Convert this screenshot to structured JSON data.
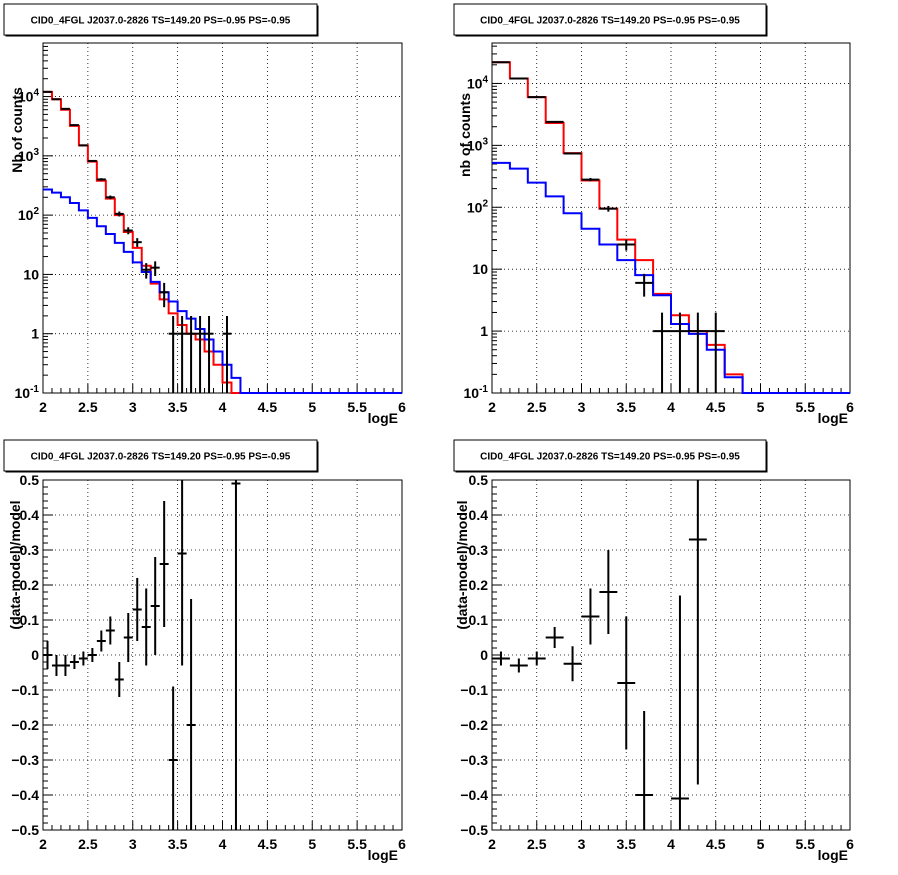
{
  "chart_data": [
    {
      "type": "line",
      "title": "CID0_4FGL J2037.0-2826 TS=149.20 PS=-0.95 PS=-0.95",
      "xlabel": "logE",
      "ylabel": "Nb of counts",
      "xlim": [
        2,
        6
      ],
      "ylim": [
        0.1,
        80000
      ],
      "yscale": "log",
      "grid": true,
      "x_ticks": [
        "2",
        "2.5",
        "3",
        "3.5",
        "4",
        "4.5",
        "5",
        "5.5",
        "6"
      ],
      "y_ticks": [
        {
          "v": 0.1,
          "t": "10",
          "sup": "-1"
        },
        {
          "v": 1,
          "t": "1",
          "sup": ""
        },
        {
          "v": 10,
          "t": "10",
          "sup": ""
        },
        {
          "v": 100,
          "t": "10",
          "sup": "2"
        },
        {
          "v": 1000,
          "t": "10",
          "sup": "3"
        },
        {
          "v": 10000,
          "t": "10",
          "sup": "4"
        }
      ],
      "bin_edges_start": 2.0,
      "bin_width": 0.1,
      "series": [
        {
          "color": "#ff0000",
          "values": [
            12000,
            9000,
            6000,
            3200,
            1500,
            800,
            380,
            190,
            100,
            52,
            28,
            14,
            7,
            3.8,
            2.2,
            1.4,
            1.0,
            0.8,
            0.5,
            0.3,
            0.15,
            0.1,
            0.1,
            0.1,
            0.1,
            0.1,
            0.1,
            0.1,
            0.1,
            0.1,
            0.1,
            0.1,
            0.1,
            0.1,
            0.1,
            0.1,
            0.1,
            0.1,
            0.1,
            0.1
          ]
        },
        {
          "color": "#0000ff",
          "values": [
            270,
            240,
            200,
            160,
            120,
            90,
            65,
            48,
            34,
            24,
            16,
            11,
            7.5,
            5,
            3.5,
            2.4,
            1.8,
            1.2,
            0.8,
            0.5,
            0.3,
            0.18,
            0.1,
            0.1,
            0.1,
            0.1,
            0.1,
            0.1,
            0.1,
            0.1,
            0.1,
            0.1,
            0.1,
            0.1,
            0.1,
            0.1,
            0.1,
            0.1,
            0.1,
            0.1
          ]
        }
      ],
      "points": [
        {
          "x": 2.05,
          "y": 12000,
          "yerr": 110
        },
        {
          "x": 2.15,
          "y": 9000,
          "yerr": 95
        },
        {
          "x": 2.25,
          "y": 6200,
          "yerr": 79
        },
        {
          "x": 2.35,
          "y": 3300,
          "yerr": 57
        },
        {
          "x": 2.45,
          "y": 1500,
          "yerr": 39
        },
        {
          "x": 2.55,
          "y": 820,
          "yerr": 29
        },
        {
          "x": 2.65,
          "y": 400,
          "yerr": 20
        },
        {
          "x": 2.75,
          "y": 200,
          "yerr": 14
        },
        {
          "x": 2.85,
          "y": 105,
          "yerr": 10
        },
        {
          "x": 2.95,
          "y": 55,
          "yerr": 7.4
        },
        {
          "x": 3.05,
          "y": 35,
          "yerr": 5.9
        },
        {
          "x": 3.15,
          "y": 12,
          "yerr": 3.5
        },
        {
          "x": 3.25,
          "y": 13,
          "yerr": 3.6
        },
        {
          "x": 3.35,
          "y": 5,
          "yerr": 2.2
        },
        {
          "x": 3.45,
          "y": 1,
          "yerr": 0.99
        },
        {
          "x": 3.55,
          "y": 1,
          "yerr": 0.99
        },
        {
          "x": 3.65,
          "y": 1,
          "yerr": 0.99
        },
        {
          "x": 3.75,
          "y": 1,
          "yerr": 0.99
        },
        {
          "x": 3.85,
          "y": 1,
          "yerr": 0.99
        },
        {
          "x": 4.05,
          "y": 1,
          "yerr": 0.99
        }
      ]
    },
    {
      "type": "line",
      "title": "CID0_4FGL J2037.0-2826 TS=149.20 PS=-0.95 PS=-0.95",
      "xlabel": "logE",
      "ylabel": "nb of counts",
      "xlim": [
        2,
        6
      ],
      "ylim": [
        0.1,
        45000
      ],
      "yscale": "log",
      "grid": true,
      "x_ticks": [
        "2",
        "2.5",
        "3",
        "3.5",
        "4",
        "4.5",
        "5",
        "5.5",
        "6"
      ],
      "y_ticks": [
        {
          "v": 0.1,
          "t": "10",
          "sup": "-1"
        },
        {
          "v": 1,
          "t": "1",
          "sup": ""
        },
        {
          "v": 10,
          "t": "10",
          "sup": ""
        },
        {
          "v": 100,
          "t": "10",
          "sup": "2"
        },
        {
          "v": 1000,
          "t": "10",
          "sup": "3"
        },
        {
          "v": 10000,
          "t": "10",
          "sup": "4"
        }
      ],
      "bin_edges_start": 2.0,
      "bin_width": 0.2,
      "series": [
        {
          "color": "#ff0000",
          "values": [
            22000,
            12000,
            6000,
            2300,
            750,
            270,
            95,
            30,
            14,
            4,
            1.8,
            1.0,
            0.6,
            0.2,
            0.1,
            0.1,
            0.1,
            0.1,
            0.1,
            0.1
          ]
        },
        {
          "color": "#0000ff",
          "values": [
            520,
            420,
            250,
            150,
            80,
            45,
            25,
            14,
            8,
            3.8,
            1.3,
            0.9,
            0.5,
            0.18,
            0.1,
            0.1,
            0.1,
            0.1,
            0.1,
            0.1
          ]
        }
      ],
      "points": [
        {
          "x": 2.1,
          "y": 22000,
          "yerr": 148
        },
        {
          "x": 2.3,
          "y": 12000,
          "yerr": 110
        },
        {
          "x": 2.5,
          "y": 6000,
          "yerr": 77
        },
        {
          "x": 2.7,
          "y": 2400,
          "yerr": 49
        },
        {
          "x": 2.9,
          "y": 740,
          "yerr": 27
        },
        {
          "x": 3.1,
          "y": 280,
          "yerr": 17
        },
        {
          "x": 3.3,
          "y": 95,
          "yerr": 10
        },
        {
          "x": 3.5,
          "y": 25,
          "yerr": 5
        },
        {
          "x": 3.7,
          "y": 6,
          "yerr": 2.4
        },
        {
          "x": 3.9,
          "y": 1,
          "yerr": 0.99
        },
        {
          "x": 4.1,
          "y": 1,
          "yerr": 0.99
        },
        {
          "x": 4.3,
          "y": 1,
          "yerr": 0.99
        },
        {
          "x": 4.5,
          "y": 1,
          "yerr": 0.99
        }
      ]
    },
    {
      "type": "scatter",
      "title": "CID0_4FGL J2037.0-2826 TS=149.20 PS=-0.95 PS=-0.95",
      "xlabel": "logE",
      "ylabel": "(data-model)/model",
      "xlim": [
        2,
        6
      ],
      "ylim": [
        -0.5,
        0.5
      ],
      "yscale": "linear",
      "grid": true,
      "x_ticks": [
        "2",
        "2.5",
        "3",
        "3.5",
        "4",
        "4.5",
        "5",
        "5.5",
        "6"
      ],
      "y_ticks": [
        {
          "v": -0.5,
          "t": "−0.5"
        },
        {
          "v": -0.4,
          "t": "−0.4"
        },
        {
          "v": -0.3,
          "t": "−0.3"
        },
        {
          "v": -0.2,
          "t": "−0.2"
        },
        {
          "v": -0.1,
          "t": "−0.1"
        },
        {
          "v": 0,
          "t": "0"
        },
        {
          "v": 0.1,
          "t": "0.1"
        },
        {
          "v": 0.2,
          "t": "0.2"
        },
        {
          "v": 0.3,
          "t": "0.3"
        },
        {
          "v": 0.4,
          "t": "0.4"
        },
        {
          "v": 0.5,
          "t": "0.5"
        }
      ],
      "xerr": 0.05,
      "points": [
        {
          "x": 2.05,
          "y": 0.0,
          "yerr": 0.04
        },
        {
          "x": 2.15,
          "y": -0.03,
          "yerr": 0.03
        },
        {
          "x": 2.25,
          "y": -0.03,
          "yerr": 0.03
        },
        {
          "x": 2.35,
          "y": -0.02,
          "yerr": 0.02
        },
        {
          "x": 2.45,
          "y": -0.01,
          "yerr": 0.02
        },
        {
          "x": 2.55,
          "y": 0.0,
          "yerr": 0.02
        },
        {
          "x": 2.65,
          "y": 0.04,
          "yerr": 0.03
        },
        {
          "x": 2.75,
          "y": 0.07,
          "yerr": 0.04
        },
        {
          "x": 2.85,
          "y": -0.07,
          "yerr": 0.05
        },
        {
          "x": 2.95,
          "y": 0.05,
          "yerr": 0.07
        },
        {
          "x": 3.05,
          "y": 0.13,
          "yerr": 0.09
        },
        {
          "x": 3.15,
          "y": 0.08,
          "yerr": 0.11
        },
        {
          "x": 3.25,
          "y": 0.14,
          "yerr": 0.14
        },
        {
          "x": 3.35,
          "y": 0.26,
          "yerr": 0.18
        },
        {
          "x": 3.45,
          "y": -0.3,
          "yerr": 0.21
        },
        {
          "x": 3.55,
          "y": 0.29,
          "yerr": 0.32
        },
        {
          "x": 3.65,
          "y": -0.2,
          "yerr": 0.36
        },
        {
          "x": 4.15,
          "y": 0.49,
          "yerr": 1.2
        }
      ]
    },
    {
      "type": "scatter",
      "title": "CID0_4FGL J2037.0-2826 TS=149.20 PS=-0.95 PS=-0.95",
      "xlabel": "logE",
      "ylabel": "(data-model)/model",
      "xlim": [
        2,
        6
      ],
      "ylim": [
        -0.5,
        0.5
      ],
      "yscale": "linear",
      "grid": true,
      "x_ticks": [
        "2",
        "2.5",
        "3",
        "3.5",
        "4",
        "4.5",
        "5",
        "5.5",
        "6"
      ],
      "y_ticks": [
        {
          "v": -0.5,
          "t": "−0.5"
        },
        {
          "v": -0.4,
          "t": "−0.4"
        },
        {
          "v": -0.3,
          "t": "−0.3"
        },
        {
          "v": -0.2,
          "t": "−0.2"
        },
        {
          "v": -0.1,
          "t": "−0.1"
        },
        {
          "v": 0,
          "t": "0"
        },
        {
          "v": 0.1,
          "t": "0.1"
        },
        {
          "v": 0.2,
          "t": "0.2"
        },
        {
          "v": 0.3,
          "t": "0.3"
        },
        {
          "v": 0.4,
          "t": "0.4"
        },
        {
          "v": 0.5,
          "t": "0.5"
        }
      ],
      "xerr": 0.1,
      "points": [
        {
          "x": 2.1,
          "y": -0.01,
          "yerr": 0.02
        },
        {
          "x": 2.3,
          "y": -0.03,
          "yerr": 0.02
        },
        {
          "x": 2.5,
          "y": -0.01,
          "yerr": 0.02
        },
        {
          "x": 2.7,
          "y": 0.05,
          "yerr": 0.03
        },
        {
          "x": 2.9,
          "y": -0.025,
          "yerr": 0.05
        },
        {
          "x": 3.1,
          "y": 0.11,
          "yerr": 0.08
        },
        {
          "x": 3.3,
          "y": 0.18,
          "yerr": 0.12
        },
        {
          "x": 3.5,
          "y": -0.08,
          "yerr": 0.19
        },
        {
          "x": 3.7,
          "y": -0.4,
          "yerr": 0.24
        },
        {
          "x": 4.1,
          "y": -0.41,
          "yerr": 0.58
        },
        {
          "x": 4.3,
          "y": 0.33,
          "yerr": 0.7
        }
      ]
    }
  ]
}
